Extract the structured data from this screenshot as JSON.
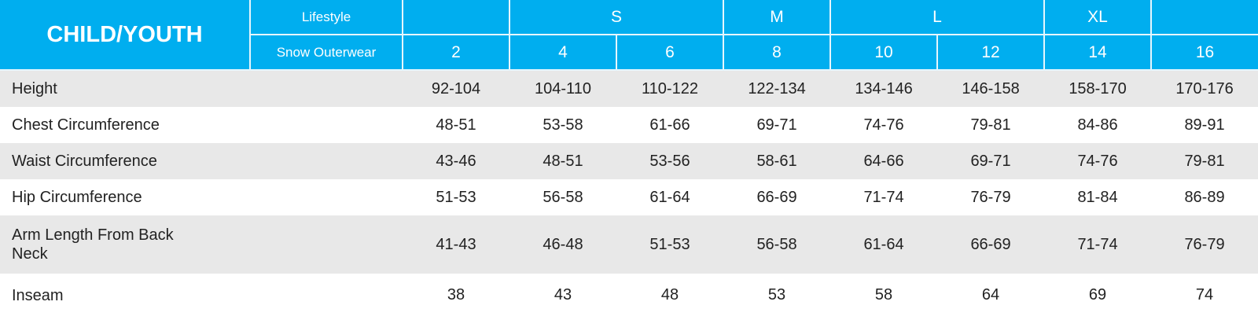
{
  "header": {
    "title": "CHILD/YOUTH",
    "lifestyle_label": "Lifestyle",
    "category_label": "Snow Outerwear",
    "size_groups": [
      {
        "label": "",
        "span": 1
      },
      {
        "label": "S",
        "span": 2
      },
      {
        "label": "M",
        "span": 1
      },
      {
        "label": "L",
        "span": 2
      },
      {
        "label": "XL",
        "span": 1
      },
      {
        "label": "",
        "span": 1
      }
    ],
    "sizes": [
      "2",
      "4",
      "6",
      "8",
      "10",
      "12",
      "14",
      "16"
    ]
  },
  "rows": [
    {
      "label": "Height",
      "values": [
        "92-104",
        "104-110",
        "110-122",
        "122-134",
        "134-146",
        "146-158",
        "158-170",
        "170-176"
      ]
    },
    {
      "label": "Chest Circumference",
      "values": [
        "48-51",
        "53-58",
        "61-66",
        "69-71",
        "74-76",
        "79-81",
        "84-86",
        "89-91"
      ]
    },
    {
      "label": "Waist Circumference",
      "values": [
        "43-46",
        "48-51",
        "53-56",
        "58-61",
        "64-66",
        "69-71",
        "74-76",
        "79-81"
      ]
    },
    {
      "label": "Hip Circumference",
      "values": [
        "51-53",
        "56-58",
        "61-64",
        "66-69",
        "71-74",
        "76-79",
        "81-84",
        "86-89"
      ]
    },
    {
      "label": "Arm Length From Back Neck",
      "values": [
        "41-43",
        "46-48",
        "51-53",
        "56-58",
        "61-64",
        "66-69",
        "71-74",
        "76-79"
      ]
    },
    {
      "label": "Inseam",
      "values": [
        "38",
        "43",
        "48",
        "53",
        "58",
        "64",
        "69",
        "74"
      ]
    }
  ],
  "colors": {
    "header_bg": "#00aeef",
    "stripe": "#e8e8e8",
    "text": "#222222"
  }
}
